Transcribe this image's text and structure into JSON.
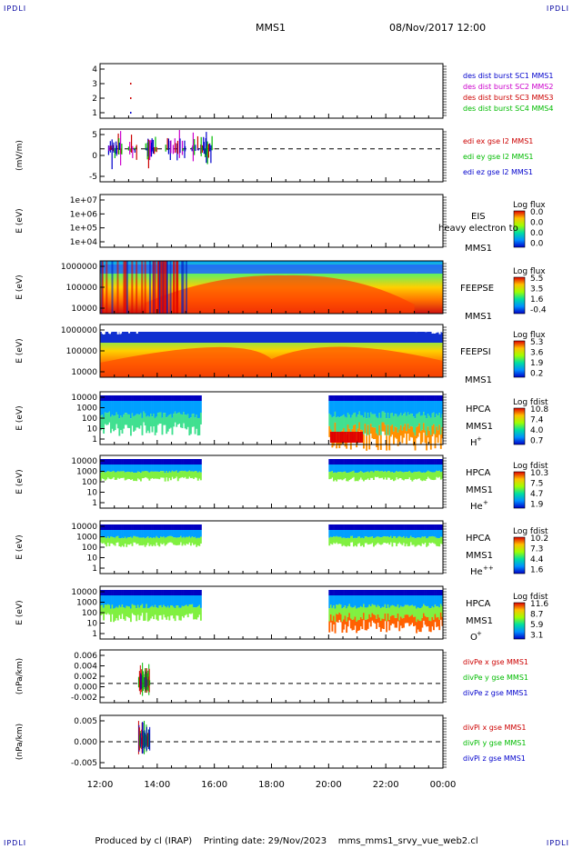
{
  "corner_label": "IPDLI",
  "header": {
    "mission": "MMS1",
    "date": "08/Nov/2017 12:00"
  },
  "footer": {
    "produced_by": "Produced by cl (IRAP)",
    "printing_date": "Printing date: 29/Nov/2023",
    "file": "mms_mms1_srvy_vue_web2.cl"
  },
  "time_axis": {
    "ticks": [
      "12:00",
      "14:00",
      "16:00",
      "18:00",
      "20:00",
      "22:00",
      "00:00"
    ]
  },
  "chart_data": [
    {
      "type": "line",
      "id": "des_dist",
      "ylabel": "",
      "yticks": [
        "4",
        "3",
        "2",
        "1"
      ],
      "legend": [
        {
          "label": "des dist burst SC1 MMS1",
          "color": "#0000cc"
        },
        {
          "label": "des dist burst SC2 MMS2",
          "color": "#cc00cc"
        },
        {
          "label": "des dist burst SC3 MMS3",
          "color": "#cc0000"
        },
        {
          "label": "des dist burst SC4 MMS4",
          "color": "#00bb00"
        }
      ],
      "points": [
        {
          "t_hours": 1.05,
          "y": 3,
          "color": "#cc0000"
        },
        {
          "t_hours": 1.05,
          "y": 2,
          "color": "#cc0000"
        },
        {
          "t_hours": 1.05,
          "y": 1,
          "color": "#0000cc"
        }
      ]
    },
    {
      "type": "line",
      "id": "edi",
      "ylabel": "(mV/m)",
      "yticks": [
        "5",
        "0",
        "-5"
      ],
      "ylim": [
        -10,
        6
      ],
      "legend": [
        {
          "label": "edi ex gse l2 MMS1",
          "color": "#cc0000"
        },
        {
          "label": "edi ey gse l2 MMS1",
          "color": "#00bb00"
        },
        {
          "label": "edi ez gse l2 MMS1",
          "color": "#0000cc"
        }
      ],
      "active_intervals_hours": [
        [
          0.3,
          0.8
        ],
        [
          1.0,
          1.3
        ],
        [
          1.6,
          2.0
        ],
        [
          2.3,
          3.0
        ],
        [
          3.2,
          4.0
        ]
      ]
    },
    {
      "type": "heatmap",
      "id": "eis",
      "ylabel": "E (eV)",
      "yticks": [
        "1e+07",
        "1e+06",
        "1e+05",
        "1e+04"
      ],
      "right_labels": [
        "EIS",
        "heavy electron to",
        "MMS1"
      ],
      "colorbar_title": "Log flux",
      "colorbar_ticks": [
        "0.0",
        "0.0",
        "0.0",
        "0.0"
      ],
      "note": "no data"
    },
    {
      "type": "heatmap",
      "id": "feepse",
      "ylabel": "E (eV)",
      "yticks": [
        "1000000",
        "100000",
        "10000"
      ],
      "right_labels": [
        "FEEPSE",
        "MMS1"
      ],
      "colorbar_title": "Log flux",
      "colorbar_ticks": [
        "5.5",
        "3.5",
        "1.6",
        "-0.4"
      ]
    },
    {
      "type": "heatmap",
      "id": "feepsi",
      "ylabel": "E (eV)",
      "yticks": [
        "1000000",
        "100000",
        "10000"
      ],
      "right_labels": [
        "FEEPSI",
        "MMS1"
      ],
      "colorbar_title": "Log flux",
      "colorbar_ticks": [
        "5.3",
        "3.6",
        "1.9",
        "0.2"
      ]
    },
    {
      "type": "heatmap",
      "id": "hpca_h",
      "ylabel": "E (eV)",
      "yticks": [
        "10000",
        "1000",
        "100",
        "10",
        "1"
      ],
      "right_labels": [
        "HPCA",
        "MMS1"
      ],
      "species": "H",
      "charge": "+",
      "colorbar_title": "Log fdist",
      "colorbar_ticks": [
        "10.8",
        "7.4",
        "4.0",
        "0.7"
      ],
      "coverage_hours": [
        [
          0,
          3.5
        ],
        [
          8,
          12
        ]
      ]
    },
    {
      "type": "heatmap",
      "id": "hpca_he",
      "ylabel": "E (eV)",
      "yticks": [
        "10000",
        "1000",
        "100",
        "10",
        "1"
      ],
      "right_labels": [
        "HPCA",
        "MMS1"
      ],
      "species": "He",
      "charge": "+",
      "colorbar_title": "Log fdist",
      "colorbar_ticks": [
        "10.3",
        "7.5",
        "4.7",
        "1.9"
      ],
      "coverage_hours": [
        [
          0,
          3.5
        ],
        [
          8,
          12
        ]
      ]
    },
    {
      "type": "heatmap",
      "id": "hpca_hepp",
      "ylabel": "E (eV)",
      "yticks": [
        "10000",
        "1000",
        "100",
        "10",
        "1"
      ],
      "right_labels": [
        "HPCA",
        "MMS1"
      ],
      "species": "He",
      "charge": "++",
      "colorbar_title": "Log fdist",
      "colorbar_ticks": [
        "10.2",
        "7.3",
        "4.4",
        "1.6"
      ],
      "coverage_hours": [
        [
          0,
          3.5
        ],
        [
          8,
          12
        ]
      ]
    },
    {
      "type": "heatmap",
      "id": "hpca_o",
      "ylabel": "E (eV)",
      "yticks": [
        "10000",
        "1000",
        "100",
        "10",
        "1"
      ],
      "right_labels": [
        "HPCA",
        "MMS1"
      ],
      "species": "O",
      "charge": "+",
      "colorbar_title": "Log fdist",
      "colorbar_ticks": [
        "11.6",
        "8.7",
        "5.9",
        "3.1"
      ],
      "coverage_hours": [
        [
          0,
          3.5
        ],
        [
          8,
          12
        ]
      ]
    },
    {
      "type": "line",
      "id": "divpe",
      "ylabel": "(nPa/km)",
      "yticks": [
        "0.006",
        "0.004",
        "0.002",
        "0.000",
        "-0.002"
      ],
      "ylim": [
        -0.004,
        0.007
      ],
      "legend": [
        {
          "label": "divPe x gse MMS1",
          "color": "#cc0000"
        },
        {
          "label": "divPe y gse MMS1",
          "color": "#00bb00"
        },
        {
          "label": "divPe z gse MMS1",
          "color": "#0000cc"
        }
      ],
      "burst_hours": [
        1.35,
        1.75
      ]
    },
    {
      "type": "line",
      "id": "divpi",
      "ylabel": "(nPa/km)",
      "yticks": [
        "0.005",
        "0.000",
        "-0.005"
      ],
      "ylim": [
        -0.009,
        0.009
      ],
      "legend": [
        {
          "label": "divPi x gse MMS1",
          "color": "#cc0000"
        },
        {
          "label": "divPi y gse MMS1",
          "color": "#00bb00"
        },
        {
          "label": "divPi z gse MMS1",
          "color": "#0000cc"
        }
      ],
      "burst_hours": [
        1.35,
        1.75
      ]
    }
  ]
}
